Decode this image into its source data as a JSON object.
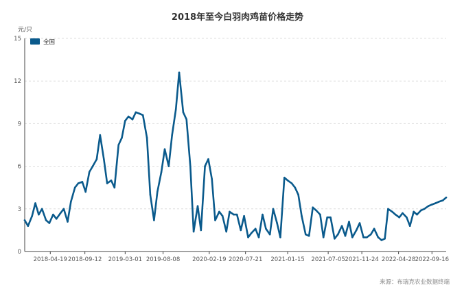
{
  "colors": {
    "series": "#0a5a8c",
    "grid": "#dcdcdc",
    "axis": "#444444"
  },
  "chart_data": {
    "type": "line",
    "title": "2018年至今白羽肉鸡苗价格走势",
    "unit_label": "元/只",
    "xlabel": "",
    "ylabel": "元/只",
    "ylim": [
      0,
      15
    ],
    "xlim": [
      "2018-01-01",
      "2022-11-15"
    ],
    "y_ticks": [
      "0",
      "3",
      "6",
      "9",
      "12",
      "15"
    ],
    "x_ticks": [
      "2018-04-19",
      "2018-09-12",
      "2019-03-01",
      "2019-08-08",
      "2020-02-19",
      "2020-07-21",
      "2021-01-15",
      "2021-07-05",
      "2021-11-24",
      "2022-04-28",
      "2022-09-16"
    ],
    "grid": "horizontal dashed",
    "legend_position": "top-left",
    "source_text": "来源：布瑞克农业数据终端",
    "series": [
      {
        "name": "全国",
        "color": "#0a5a8c",
        "x": [
          "2018-01-01",
          "2018-01-15",
          "2018-02-01",
          "2018-02-15",
          "2018-03-01",
          "2018-03-15",
          "2018-04-01",
          "2018-04-15",
          "2018-05-01",
          "2018-05-15",
          "2018-06-01",
          "2018-06-15",
          "2018-07-01",
          "2018-07-15",
          "2018-08-01",
          "2018-08-15",
          "2018-09-01",
          "2018-09-15",
          "2018-10-01",
          "2018-10-15",
          "2018-11-01",
          "2018-11-15",
          "2018-12-01",
          "2018-12-15",
          "2019-01-01",
          "2019-01-15",
          "2019-02-01",
          "2019-02-15",
          "2019-03-01",
          "2019-03-15",
          "2019-04-01",
          "2019-04-15",
          "2019-05-01",
          "2019-05-15",
          "2019-06-01",
          "2019-06-15",
          "2019-07-01",
          "2019-07-15",
          "2019-08-01",
          "2019-08-15",
          "2019-09-01",
          "2019-09-15",
          "2019-10-01",
          "2019-10-15",
          "2019-11-01",
          "2019-11-15",
          "2019-12-01",
          "2019-12-15",
          "2020-01-01",
          "2020-01-15",
          "2020-02-01",
          "2020-02-15",
          "2020-03-01",
          "2020-03-15",
          "2020-04-01",
          "2020-04-15",
          "2020-05-01",
          "2020-05-15",
          "2020-06-01",
          "2020-06-15",
          "2020-07-01",
          "2020-07-15",
          "2020-08-01",
          "2020-08-15",
          "2020-09-01",
          "2020-09-15",
          "2020-10-01",
          "2020-10-15",
          "2020-11-01",
          "2020-11-15",
          "2020-12-01",
          "2020-12-15",
          "2021-01-01",
          "2021-01-15",
          "2021-02-01",
          "2021-02-15",
          "2021-03-01",
          "2021-03-15",
          "2021-04-01",
          "2021-04-15",
          "2021-05-01",
          "2021-05-15",
          "2021-06-01",
          "2021-06-15",
          "2021-07-01",
          "2021-07-15",
          "2021-08-01",
          "2021-08-15",
          "2021-09-01",
          "2021-09-15",
          "2021-10-01",
          "2021-10-15",
          "2021-11-01",
          "2021-11-15",
          "2021-12-01",
          "2021-12-15",
          "2022-01-01",
          "2022-01-15",
          "2022-02-01",
          "2022-02-15",
          "2022-03-01",
          "2022-03-15",
          "2022-04-01",
          "2022-04-15",
          "2022-05-01",
          "2022-05-15",
          "2022-06-01",
          "2022-06-15",
          "2022-07-01",
          "2022-07-15",
          "2022-08-01",
          "2022-08-15",
          "2022-09-01",
          "2022-09-15",
          "2022-10-01",
          "2022-10-15",
          "2022-11-01",
          "2022-11-15"
        ],
        "values": [
          2.2,
          1.8,
          2.5,
          3.4,
          2.6,
          3.0,
          2.2,
          2.0,
          2.6,
          2.3,
          2.7,
          3.0,
          2.1,
          3.5,
          4.5,
          4.8,
          4.9,
          4.2,
          5.6,
          6.0,
          6.5,
          8.2,
          6.5,
          4.8,
          5.0,
          4.5,
          7.5,
          8.0,
          9.2,
          9.5,
          9.3,
          9.8,
          9.7,
          9.6,
          8.0,
          4.0,
          2.2,
          4.2,
          5.6,
          7.2,
          6.0,
          8.2,
          10.0,
          12.6,
          9.8,
          9.3,
          6.0,
          1.4,
          3.2,
          1.5,
          6.0,
          6.5,
          5.1,
          2.2,
          2.8,
          2.5,
          1.4,
          2.8,
          2.6,
          2.6,
          1.5,
          2.5,
          1.0,
          1.3,
          1.6,
          1.0,
          2.6,
          1.6,
          1.2,
          3.0,
          2.0,
          1.0,
          5.2,
          5.0,
          4.8,
          4.5,
          4.0,
          2.5,
          1.2,
          1.1,
          3.1,
          2.9,
          2.6,
          1.0,
          2.4,
          2.4,
          0.9,
          1.2,
          1.8,
          1.1,
          2.1,
          1.0,
          1.5,
          2.0,
          1.0,
          1.0,
          1.2,
          1.6,
          1.0,
          0.8,
          0.9,
          3.0,
          2.8,
          2.6,
          2.4,
          2.7,
          2.4,
          1.8,
          2.8,
          2.6,
          2.9,
          3.0,
          3.2,
          3.3,
          3.4,
          3.5,
          3.6,
          3.8
        ]
      }
    ]
  }
}
